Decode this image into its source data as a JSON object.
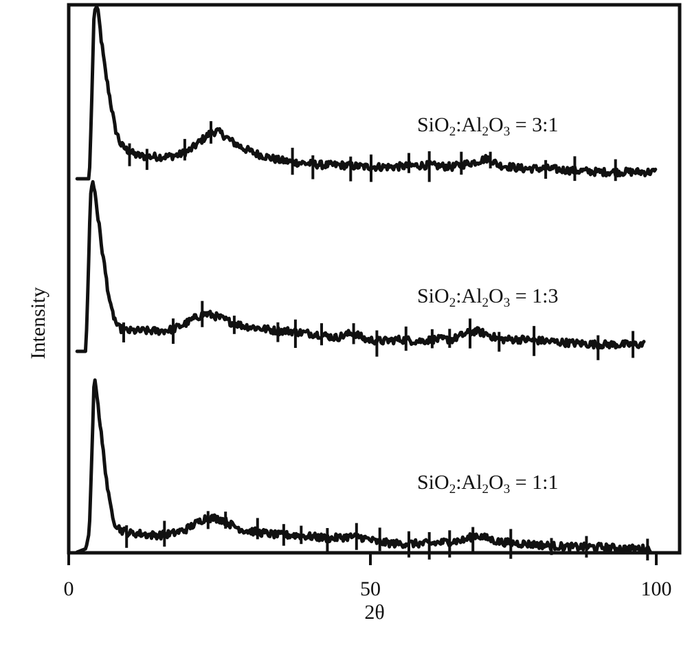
{
  "chart_data": {
    "type": "line",
    "title": "",
    "xlabel": "2θ",
    "ylabel": "Intensity",
    "xlim": [
      0,
      100
    ],
    "x_ticks": [
      {
        "value": 0,
        "label": "0"
      },
      {
        "value": 50,
        "label": "50"
      },
      {
        "value": 100,
        "label": "100"
      }
    ],
    "y_ticks": "none",
    "grid": false,
    "legend": "none",
    "line_color": "#111111",
    "series": [
      {
        "label_parts": [
          "SiO",
          "2",
          ":Al",
          "2",
          "O",
          "3",
          " = 3:1"
        ],
        "offset": 2,
        "x": [
          0.5,
          2.6,
          3.0,
          3.4,
          3.8,
          4.2,
          4.7,
          5.3,
          6.0,
          7.0,
          8.0,
          9.0,
          10.5,
          12,
          14,
          16,
          18,
          20,
          22,
          23.5,
          24.5,
          25.5,
          27,
          29,
          31,
          33,
          35,
          37,
          40,
          43,
          46,
          50,
          55,
          60,
          65,
          69,
          71,
          73,
          77,
          81,
          85,
          90,
          95,
          100
        ],
        "y": [
          0.0,
          0.0,
          0.45,
          0.96,
          1.02,
          0.95,
          0.8,
          0.64,
          0.5,
          0.3,
          0.2,
          0.17,
          0.14,
          0.13,
          0.13,
          0.13,
          0.14,
          0.17,
          0.23,
          0.27,
          0.28,
          0.26,
          0.22,
          0.18,
          0.15,
          0.13,
          0.11,
          0.1,
          0.09,
          0.08,
          0.08,
          0.07,
          0.07,
          0.08,
          0.07,
          0.1,
          0.12,
          0.08,
          0.06,
          0.06,
          0.05,
          0.04,
          0.04,
          0.04
        ],
        "spikes_x": [
          9.5,
          12.5,
          19.0,
          23.5,
          37.5,
          41.0,
          47.5,
          51.0,
          57.5,
          61.0,
          66.5,
          71.5,
          81.0,
          86.0,
          93.0
        ]
      },
      {
        "label_parts": [
          "SiO",
          "2",
          ":Al",
          "2",
          "O",
          "3",
          " = 1:3"
        ],
        "offset": 1,
        "x": [
          0.5,
          2.0,
          2.4,
          2.8,
          3.2,
          3.6,
          4.1,
          4.7,
          5.4,
          6.3,
          7.5,
          9.0,
          11,
          13,
          15,
          17,
          19,
          21,
          22.5,
          24,
          25.5,
          27,
          29,
          31,
          33,
          35,
          37,
          39,
          42,
          45,
          48,
          50,
          53,
          56,
          59,
          62,
          65,
          67,
          69,
          71,
          73,
          77,
          81,
          85,
          90,
          95,
          98
        ],
        "y": [
          0.0,
          0.0,
          0.42,
          0.93,
          0.99,
          0.93,
          0.78,
          0.62,
          0.45,
          0.25,
          0.14,
          0.12,
          0.12,
          0.12,
          0.12,
          0.13,
          0.16,
          0.2,
          0.22,
          0.21,
          0.19,
          0.17,
          0.15,
          0.14,
          0.13,
          0.12,
          0.12,
          0.11,
          0.1,
          0.08,
          0.11,
          0.07,
          0.06,
          0.07,
          0.06,
          0.07,
          0.07,
          0.1,
          0.12,
          0.1,
          0.07,
          0.07,
          0.06,
          0.05,
          0.04,
          0.04,
          0.04
        ],
        "spikes_x": [
          8.5,
          17.0,
          22.0,
          27.5,
          35.0,
          38.0,
          42.5,
          48.0,
          52.0,
          57.0,
          61.5,
          64.5,
          68.0,
          73.0,
          79.0,
          90.0,
          96.0
        ]
      },
      {
        "label_parts": [
          "SiO",
          "2",
          ":Al",
          "2",
          "O",
          "3",
          " = 1:1"
        ],
        "offset": 0,
        "x": [
          0.5,
          2.0,
          2.6,
          3.0,
          3.4,
          3.8,
          4.2,
          4.7,
          5.3,
          6.0,
          7.0,
          8.0,
          9.5,
          11,
          13,
          15,
          17,
          19,
          21,
          22.5,
          24,
          25.5,
          27,
          29,
          31,
          33,
          35,
          38,
          41,
          44,
          47,
          49,
          52,
          55,
          58,
          61,
          64,
          67,
          69,
          71,
          73,
          77,
          81,
          85,
          90,
          95,
          99
        ],
        "y": [
          0.0,
          0.02,
          0.12,
          0.55,
          1.0,
          0.97,
          0.83,
          0.67,
          0.5,
          0.3,
          0.17,
          0.13,
          0.11,
          0.11,
          0.1,
          0.1,
          0.11,
          0.13,
          0.17,
          0.2,
          0.2,
          0.19,
          0.16,
          0.13,
          0.12,
          0.11,
          0.1,
          0.1,
          0.09,
          0.08,
          0.09,
          0.09,
          0.06,
          0.05,
          0.05,
          0.05,
          0.06,
          0.07,
          0.1,
          0.08,
          0.06,
          0.05,
          0.04,
          0.03,
          0.03,
          0.02,
          0.02
        ],
        "spikes_x": [
          9.0,
          15.5,
          23.0,
          26.0,
          31.5,
          36.0,
          39.0,
          43.5,
          48.5,
          52.5,
          57.5,
          61.0,
          64.5,
          68.5,
          75.0,
          82.0,
          88.0,
          98.5
        ]
      }
    ]
  }
}
